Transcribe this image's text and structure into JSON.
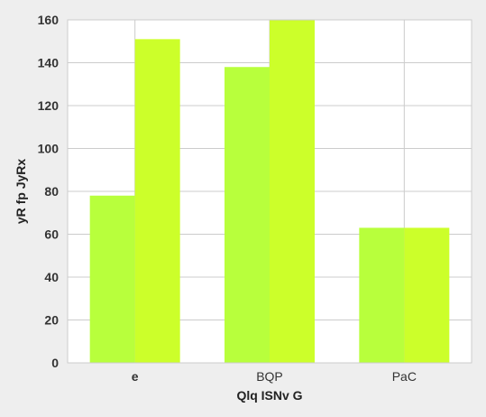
{
  "chart_data": {
    "type": "bar",
    "categories": [
      "e",
      "BQP",
      "PaC"
    ],
    "series": [
      {
        "values": [
          78,
          138,
          63
        ],
        "color": "#b8ff3c"
      },
      {
        "values": [
          151,
          160,
          63
        ],
        "color": "#ccff2a"
      }
    ],
    "xlabel": "Qlq ISNv G",
    "ylabel": "yR  fp JyRx",
    "ylim": [
      0,
      160
    ],
    "yticks": [
      0,
      20,
      40,
      60,
      80,
      100,
      120,
      140,
      160
    ],
    "grid": true,
    "plot_background": "#ffffff",
    "grid_color": "#cccccc"
  }
}
